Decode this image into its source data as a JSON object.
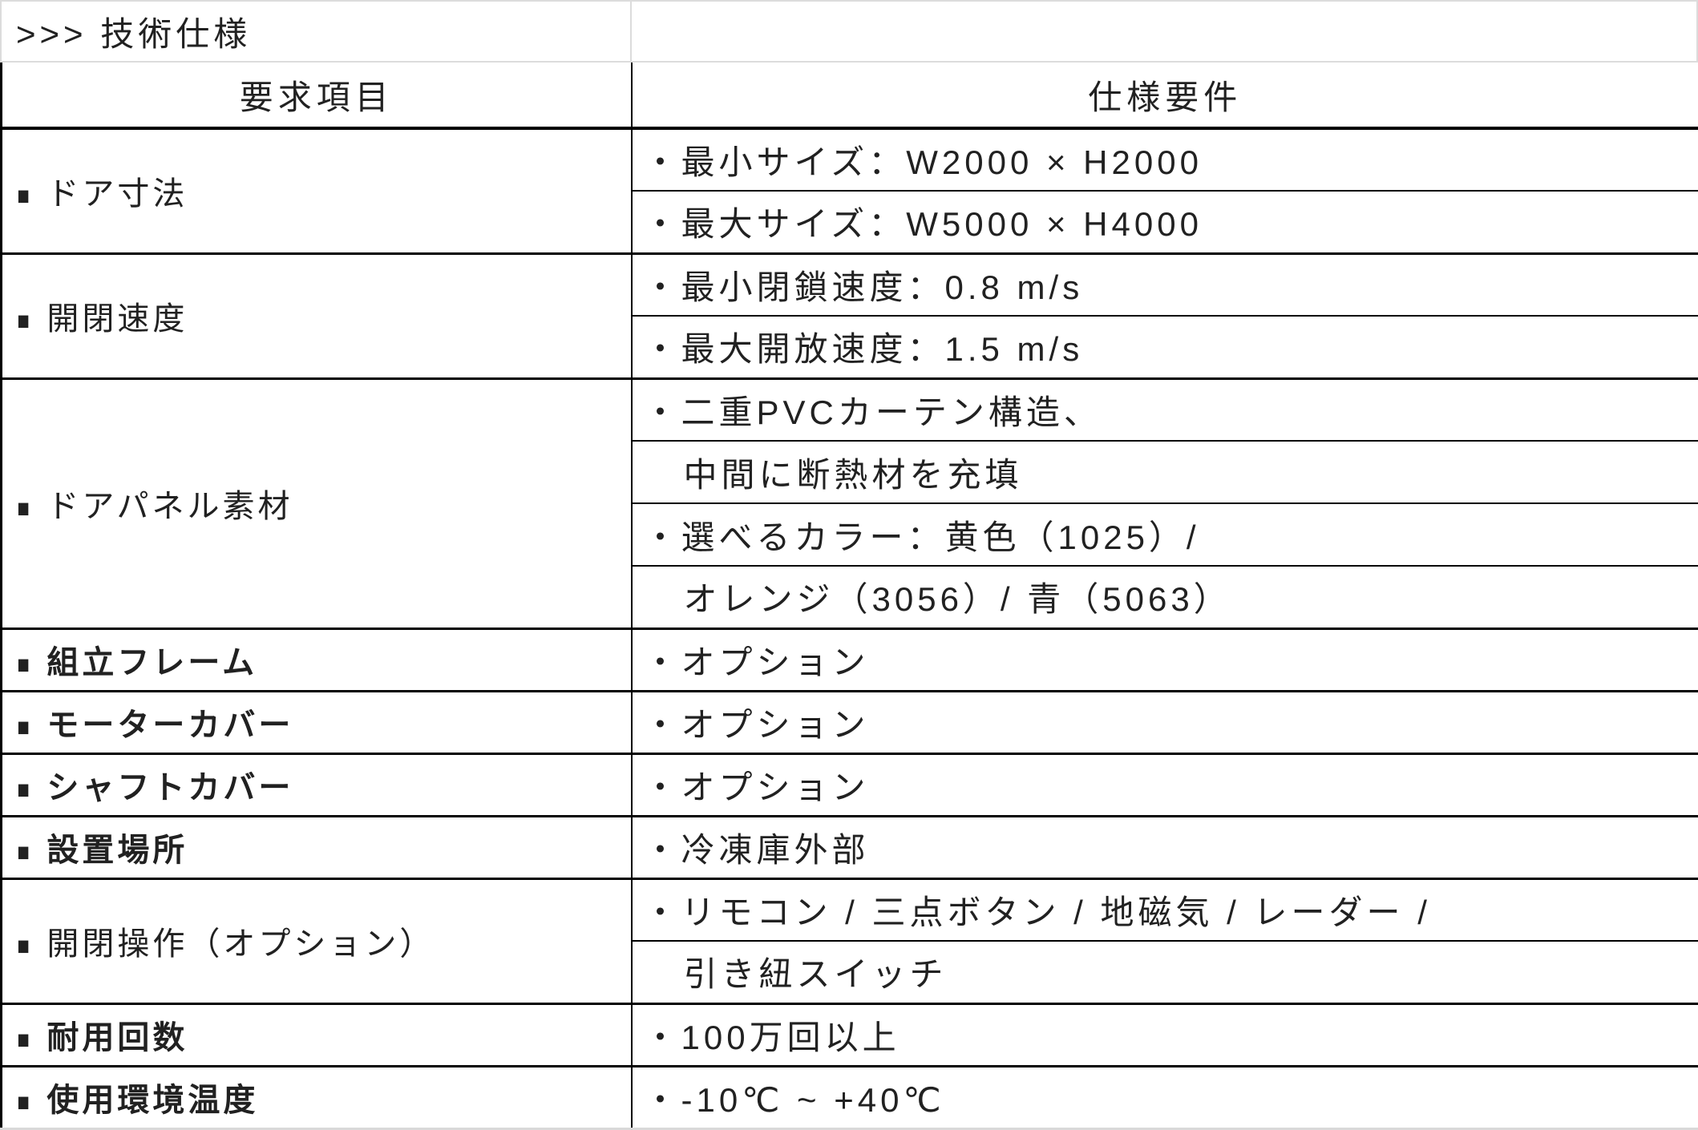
{
  "title": ">>> 技術仕様",
  "header": {
    "item_column": "要求項目",
    "spec_column": "仕様要件"
  },
  "marker": "■",
  "groups": [
    {
      "item": "ドア寸法",
      "specs": [
        "・最小サイズ：W2000 × H2000",
        "・最大サイズ：W5000 × H4000"
      ]
    },
    {
      "item": "開閉速度",
      "specs": [
        "・最小閉鎖速度：0.8 m/s",
        "・最大開放速度：1.5 m/s"
      ]
    },
    {
      "item": "ドアパネル素材",
      "specs": [
        "・二重PVCカーテン構造、",
        "中間に断熱材を充填",
        "・選べるカラー：黄色（1025）/",
        "オレンジ（3056）/ 青（5063）"
      ]
    },
    {
      "item": "組立フレーム",
      "specs": [
        "・オプション"
      ]
    },
    {
      "item": "モーターカバー",
      "specs": [
        "・オプション"
      ]
    },
    {
      "item": "シャフトカバー",
      "specs": [
        "・オプション"
      ]
    },
    {
      "item": "設置場所",
      "specs": [
        "・冷凍庫外部"
      ]
    },
    {
      "item": "開閉操作（オプション）",
      "specs": [
        "・リモコン / 三点ボタン / 地磁気 / レーダー /",
        "引き紐スイッチ"
      ]
    },
    {
      "item": "耐用回数",
      "specs": [
        "・100万回以上"
      ]
    },
    {
      "item": "使用環境温度",
      "specs": [
        "・-10℃ ~ +40℃"
      ]
    }
  ],
  "colors": {
    "grid_black": "#000000",
    "grid_light": "#dcdcdc",
    "text": "#212121",
    "background": "#ffffff"
  }
}
